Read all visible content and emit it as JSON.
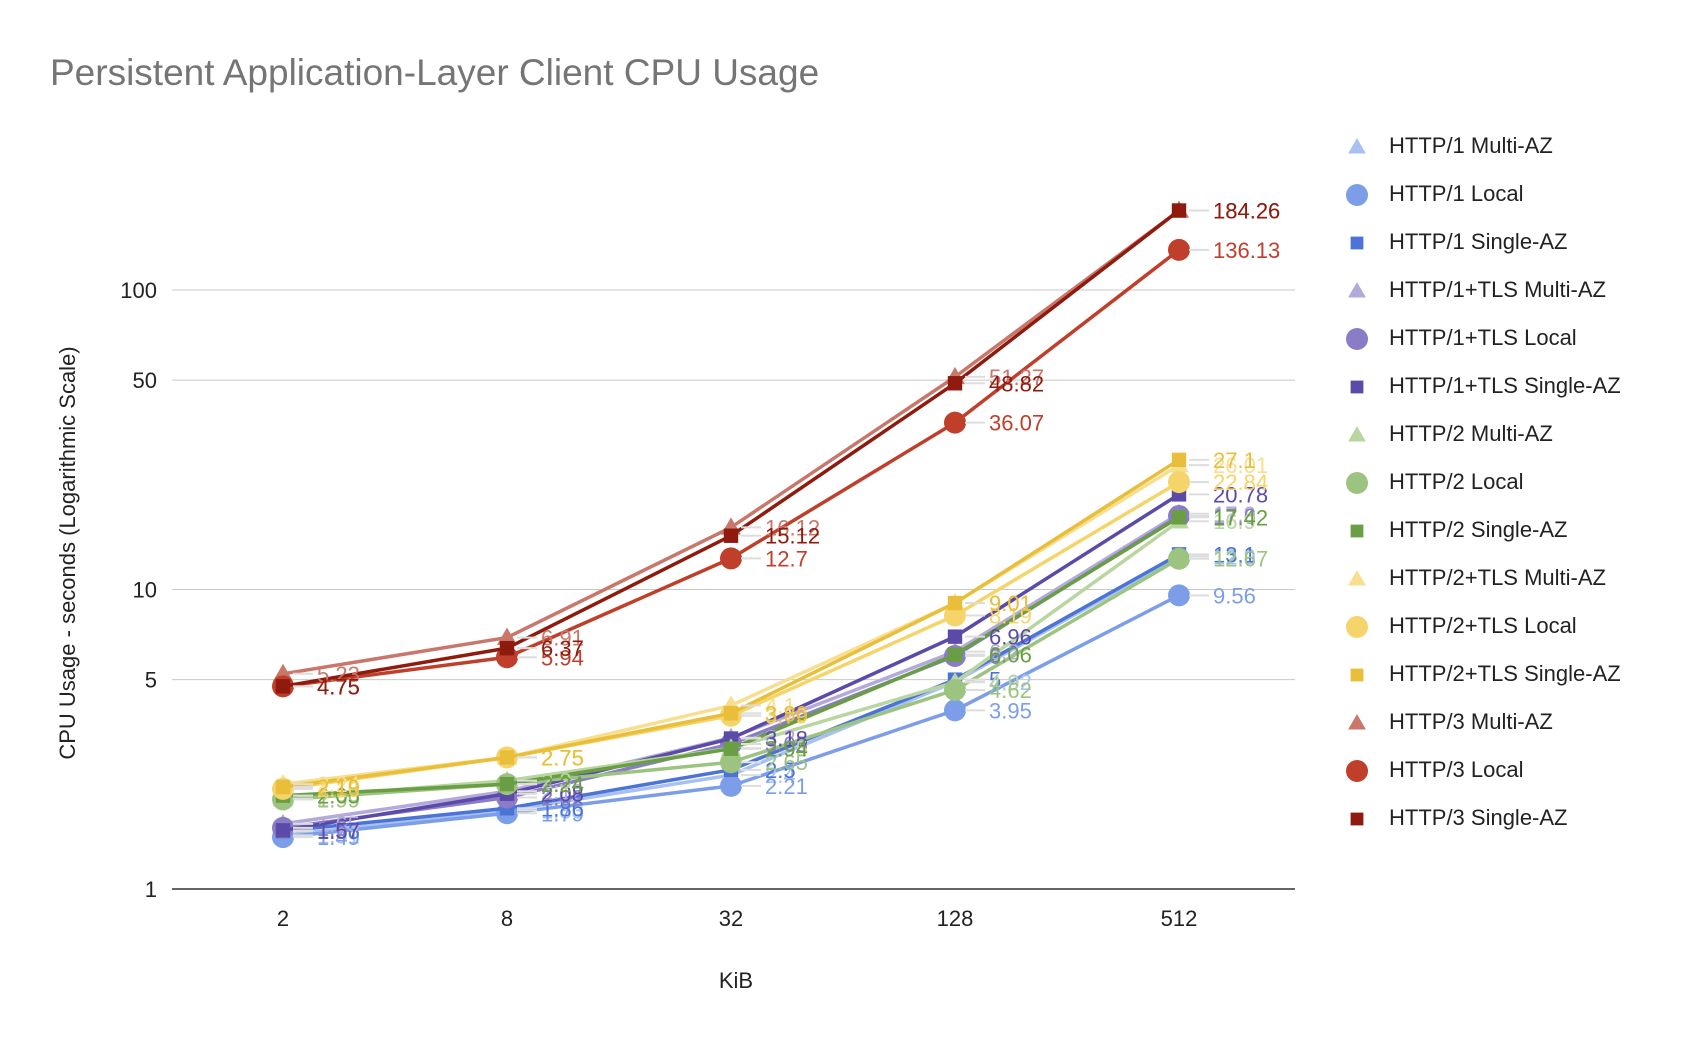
{
  "chart_data": {
    "type": "line",
    "title": "Persistent Application-Layer Client CPU Usage",
    "xlabel": "KiB",
    "ylabel": "CPU Usage - seconds (Logarithmic Scale)",
    "y_scale": "log",
    "ylim": [
      1,
      200
    ],
    "yticks": [
      "1",
      "5",
      "10",
      "50",
      "100"
    ],
    "categories": [
      "2",
      "8",
      "32",
      "128",
      "512"
    ],
    "grid": true,
    "legend_position": "right",
    "series": [
      {
        "name": "HTTP/1 Multi-AZ",
        "marker": "triangle",
        "color": "#a9c1f2",
        "values": [
          1.51,
          1.83,
          2.4,
          4.92,
          12.9
        ],
        "labels": [
          "1.51",
          "1.83",
          "2.4",
          "4.92",
          "12.9"
        ]
      },
      {
        "name": "HTTP/1 Local",
        "marker": "circle",
        "color": "#7c9ee8",
        "values": [
          1.49,
          1.79,
          2.21,
          3.95,
          9.56
        ],
        "labels": [
          "1.49",
          "1.79",
          "2.21",
          "3.95",
          "9.56"
        ]
      },
      {
        "name": "HTTP/1 Single-AZ",
        "marker": "square",
        "color": "#4b74d6",
        "values": [
          1.56,
          1.86,
          2.5,
          5.0,
          13.1
        ],
        "labels": [
          "1.56",
          "1.86",
          "2.5",
          "5",
          "13.1"
        ]
      },
      {
        "name": "HTTP/1+TLS Multi-AZ",
        "marker": "triangle",
        "color": "#b3a9da",
        "values": [
          1.65,
          2.12,
          3.2,
          6.2,
          17.9
        ],
        "labels": [
          "1.65",
          "2.12",
          "3.2",
          "6.2",
          "17.9"
        ]
      },
      {
        "name": "HTTP/1+TLS Local",
        "marker": "circle",
        "color": "#8a7cc7",
        "values": [
          1.6,
          2.02,
          3.05,
          6.0,
          17.6
        ],
        "labels": [
          "1.6",
          "2.02",
          "3.05",
          "6",
          "17.6"
        ]
      },
      {
        "name": "HTTP/1+TLS Single-AZ",
        "marker": "square",
        "color": "#5c4aa8",
        "values": [
          1.57,
          2.08,
          3.18,
          6.96,
          20.78
        ],
        "labels": [
          "1.57",
          "2.08",
          "3.18",
          "6.96",
          "20.78"
        ]
      },
      {
        "name": "HTTP/2 Multi-AZ",
        "marker": "triangle",
        "color": "#b9d6a1",
        "values": [
          2.0,
          2.3,
          2.95,
          4.9,
          16.9
        ],
        "labels": [
          "2",
          "2.3",
          "2.95",
          "4.9",
          "16.9"
        ]
      },
      {
        "name": "HTTP/2 Local",
        "marker": "circle",
        "color": "#9cc480",
        "values": [
          1.99,
          2.24,
          2.65,
          4.62,
          12.67
        ],
        "labels": [
          "1.99",
          "2.24",
          "2.65",
          "4.62",
          "12.67"
        ]
      },
      {
        "name": "HTTP/2 Single-AZ",
        "marker": "square",
        "color": "#6a9e45",
        "values": [
          2.05,
          2.24,
          2.94,
          6.06,
          17.42
        ],
        "labels": [
          "2.05",
          "2.24",
          "2.94",
          "6.06",
          "17.42"
        ]
      },
      {
        "name": "HTTP/2+TLS Multi-AZ",
        "marker": "triangle",
        "color": "#f7df8f",
        "values": [
          2.24,
          2.75,
          4.1,
          9.01,
          26.01
        ],
        "labels": [
          "2.24",
          "2.75",
          "4.1",
          "9.01",
          "26.01"
        ]
      },
      {
        "name": "HTTP/2+TLS Local",
        "marker": "circle",
        "color": "#f5d46a",
        "values": [
          2.16,
          2.75,
          3.79,
          8.19,
          22.84
        ],
        "labels": [
          "2.16",
          "2.75",
          "3.79",
          "8.19",
          "22.84"
        ]
      },
      {
        "name": "HTTP/2+TLS Single-AZ",
        "marker": "square",
        "color": "#e9be3a",
        "values": [
          2.19,
          2.75,
          3.86,
          9.01,
          27.1
        ],
        "labels": [
          "2.19",
          "2.75",
          "3.86",
          "9.01",
          "27.1"
        ]
      },
      {
        "name": "HTTP/3 Multi-AZ",
        "marker": "triangle",
        "color": "#c9776b",
        "values": [
          5.23,
          6.91,
          16.12,
          51.27,
          184.26
        ],
        "labels": [
          "5.23",
          "6.91",
          "16.12",
          "51.27",
          "184.26"
        ]
      },
      {
        "name": "HTTP/3 Local",
        "marker": "circle",
        "color": "#bf3f2b",
        "values": [
          4.75,
          5.94,
          12.7,
          36.07,
          136.13
        ],
        "labels": [
          "4.75",
          "5.94",
          "12.7",
          "36.07",
          "136.13"
        ]
      },
      {
        "name": "HTTP/3 Single-AZ",
        "marker": "square",
        "color": "#8f1a0e",
        "values": [
          4.75,
          6.37,
          15.12,
          48.82,
          184.26
        ],
        "labels": [
          "4.75",
          "6.37",
          "15.12",
          "48.82",
          "184.26"
        ]
      }
    ]
  }
}
